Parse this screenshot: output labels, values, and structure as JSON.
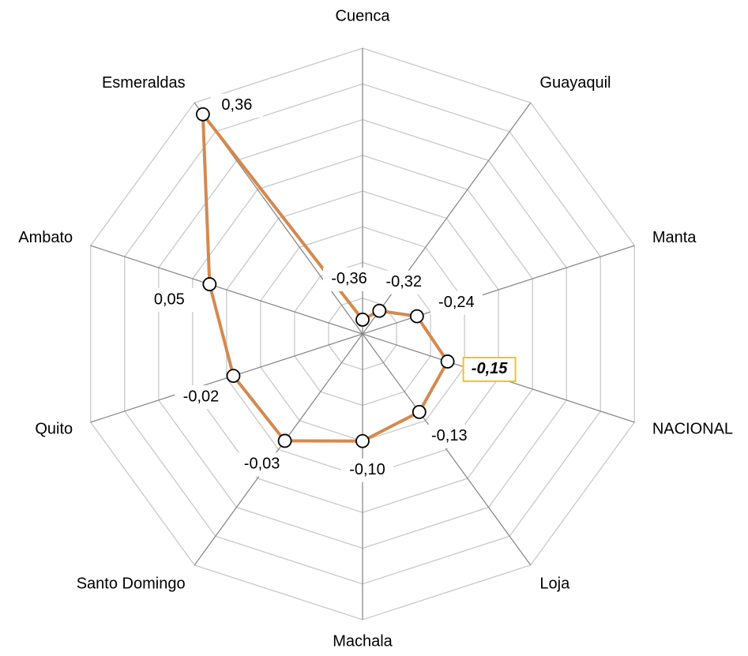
{
  "chart_data": {
    "type": "radar",
    "categories": [
      "Cuenca",
      "Guayaquil",
      "Manta",
      "NACIONAL",
      "Loja",
      "Machala",
      "Santo Domingo",
      "Quito",
      "Ambato",
      "Esmeraldas"
    ],
    "values": [
      -0.36,
      -0.32,
      -0.24,
      -0.15,
      -0.13,
      -0.1,
      -0.03,
      -0.02,
      0.05,
      0.36
    ],
    "value_labels": [
      "-0,36",
      "-0,32",
      "-0,24",
      "-0,15",
      "-0,13",
      "-0,10",
      "-0,03",
      "-0,02",
      "0,05",
      "0,36"
    ],
    "color": "#d4894f",
    "ylim": [
      -0.4,
      0.4
    ],
    "yticks": [
      -0.4,
      -0.3,
      -0.2,
      -0.1,
      0,
      0.1,
      0.2,
      0.3,
      0.4
    ],
    "grid": true,
    "highlight_category": "NACIONAL"
  }
}
